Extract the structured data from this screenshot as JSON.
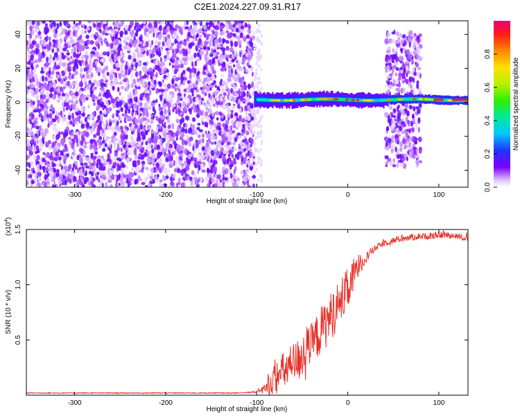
{
  "title": "C2E1.2024.227.09.31.R17",
  "chart_data": [
    {
      "type": "heatmap",
      "title": "C2E1.2024.227.09.31.R17",
      "xlabel": "Height of straight line (km)",
      "ylabel": "Frequency (Hz)",
      "xlim": [
        -353,
        132
      ],
      "ylim": [
        -50,
        48
      ],
      "xticks": [
        -300,
        -200,
        -100,
        0,
        100
      ],
      "xtick_labels": [
        "-300",
        "-200",
        "-100",
        "0",
        "100"
      ],
      "yticks": [
        -40,
        -20,
        0,
        20,
        40
      ],
      "ytick_labels": [
        "-40",
        "-20",
        "0",
        "20",
        "40"
      ],
      "colorbar": {
        "label": "Normalized spectral amplitude",
        "range": [
          0,
          1
        ],
        "ticks": [
          0.0,
          0.2,
          0.4,
          0.6,
          0.8
        ],
        "tick_labels": [
          "0.0",
          "0.2",
          "0.4",
          "0.6",
          "0.8"
        ],
        "colormap": "rainbow"
      },
      "regions": [
        {
          "name": "noise",
          "x_range": [
            -353,
            -103
          ],
          "f_range": [
            -50,
            48
          ],
          "amplitude": 0.15
        },
        {
          "name": "noise-burst",
          "x_range": [
            42,
            80
          ],
          "f_range": [
            -38,
            42
          ],
          "amplitude": 0.12
        },
        {
          "name": "carrier",
          "x_range": [
            -103,
            132
          ],
          "center_hz": 1.5,
          "amplitude": 0.8
        }
      ]
    },
    {
      "type": "line",
      "xlabel": "Height of straight line (km)",
      "ylabel": "SNR (10 * v/v)",
      "exponent_label": "(x10",
      "exponent_value": "4",
      "exponent_close": ")",
      "xlim": [
        -353,
        132
      ],
      "ylim": [
        0,
        1.5
      ],
      "xticks": [
        -300,
        -200,
        -100,
        0,
        100
      ],
      "xtick_labels": [
        "-300",
        "-200",
        "-100",
        "0",
        "100"
      ],
      "yticks": [
        0.5,
        1.0,
        1.5
      ],
      "ytick_labels": [
        "0.5",
        "1.0",
        "1.5"
      ],
      "series": [
        {
          "name": "SNR",
          "color": "#e8312a",
          "x": [
            -353,
            -300,
            -200,
            -120,
            -100,
            -90,
            -80,
            -70,
            -60,
            -50,
            -40,
            -30,
            -20,
            -10,
            0,
            10,
            20,
            30,
            40,
            50,
            60,
            70,
            80,
            90,
            100,
            110,
            120,
            132
          ],
          "y": [
            0.02,
            0.02,
            0.02,
            0.02,
            0.03,
            0.06,
            0.15,
            0.22,
            0.28,
            0.35,
            0.45,
            0.58,
            0.7,
            0.82,
            0.95,
            1.15,
            1.25,
            1.33,
            1.38,
            1.4,
            1.42,
            1.43,
            1.44,
            1.44,
            1.45,
            1.45,
            1.44,
            1.42
          ],
          "noise": [
            0,
            0,
            0,
            0,
            0.01,
            0.06,
            0.15,
            0.18,
            0.2,
            0.2,
            0.2,
            0.22,
            0.22,
            0.22,
            0.2,
            0.14,
            0.05,
            0.03,
            0.03,
            0.03,
            0.03,
            0.03,
            0.03,
            0.03,
            0.03,
            0.03,
            0.03,
            0.03
          ]
        }
      ]
    }
  ]
}
